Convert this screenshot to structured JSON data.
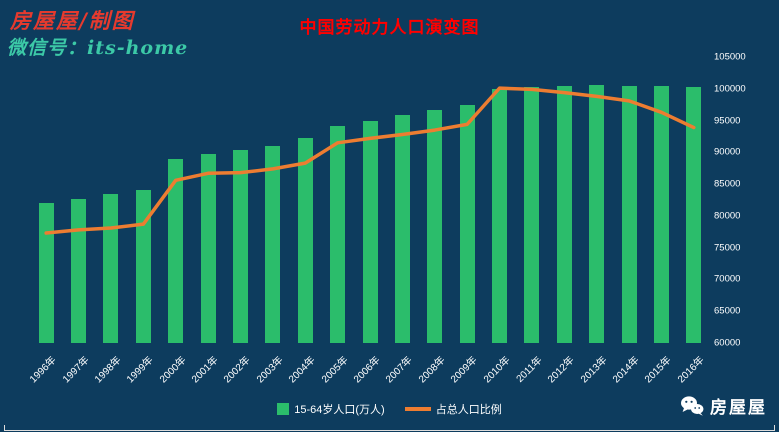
{
  "watermark": {
    "brand": "房屋屋/制图",
    "wechat_id": "微信号：its-home"
  },
  "footer": {
    "brand": "房屋屋"
  },
  "colors": {
    "background": "#0d3c5e",
    "bar": "#2bbd6b",
    "line": "#ed7d31",
    "title": "#ff0000",
    "axis_text": "#ffffff"
  },
  "chart_data": {
    "type": "bar",
    "title": "中国劳动力人口演变图",
    "categories": [
      "1996年",
      "1997年",
      "1998年",
      "1999年",
      "2000年",
      "2001年",
      "2002年",
      "2003年",
      "2004年",
      "2005年",
      "2006年",
      "2007年",
      "2008年",
      "2009年",
      "2010年",
      "2011年",
      "2012年",
      "2013年",
      "2014年",
      "2015年",
      "2016年"
    ],
    "series": [
      {
        "name": "15-64岁人口(万人)",
        "type": "bar",
        "color": "#2bbd6b",
        "values": [
          82000,
          82600,
          83400,
          84100,
          88900,
          89800,
          90300,
          91000,
          92200,
          94200,
          95000,
          95900,
          96700,
          97500,
          99900,
          100300,
          100400,
          100600,
          100500,
          100400,
          100300
        ]
      },
      {
        "name": "占总人口比例",
        "type": "line",
        "color": "#ed7d31",
        "values": [
          77300,
          77800,
          78100,
          78700,
          85600,
          86700,
          86800,
          87400,
          88300,
          91500,
          92200,
          92800,
          93500,
          94400,
          100100,
          99900,
          99400,
          98800,
          98100,
          96300,
          93900
        ]
      }
    ],
    "ylim": [
      60000,
      105000
    ],
    "ytick_step": 5000,
    "ytick_labels": [
      "60000",
      "65000",
      "70000",
      "75000",
      "80000",
      "85000",
      "90000",
      "95000",
      "100000",
      "105000"
    ],
    "yaxis_side": "right",
    "legend_position": "bottom",
    "grid": false
  }
}
